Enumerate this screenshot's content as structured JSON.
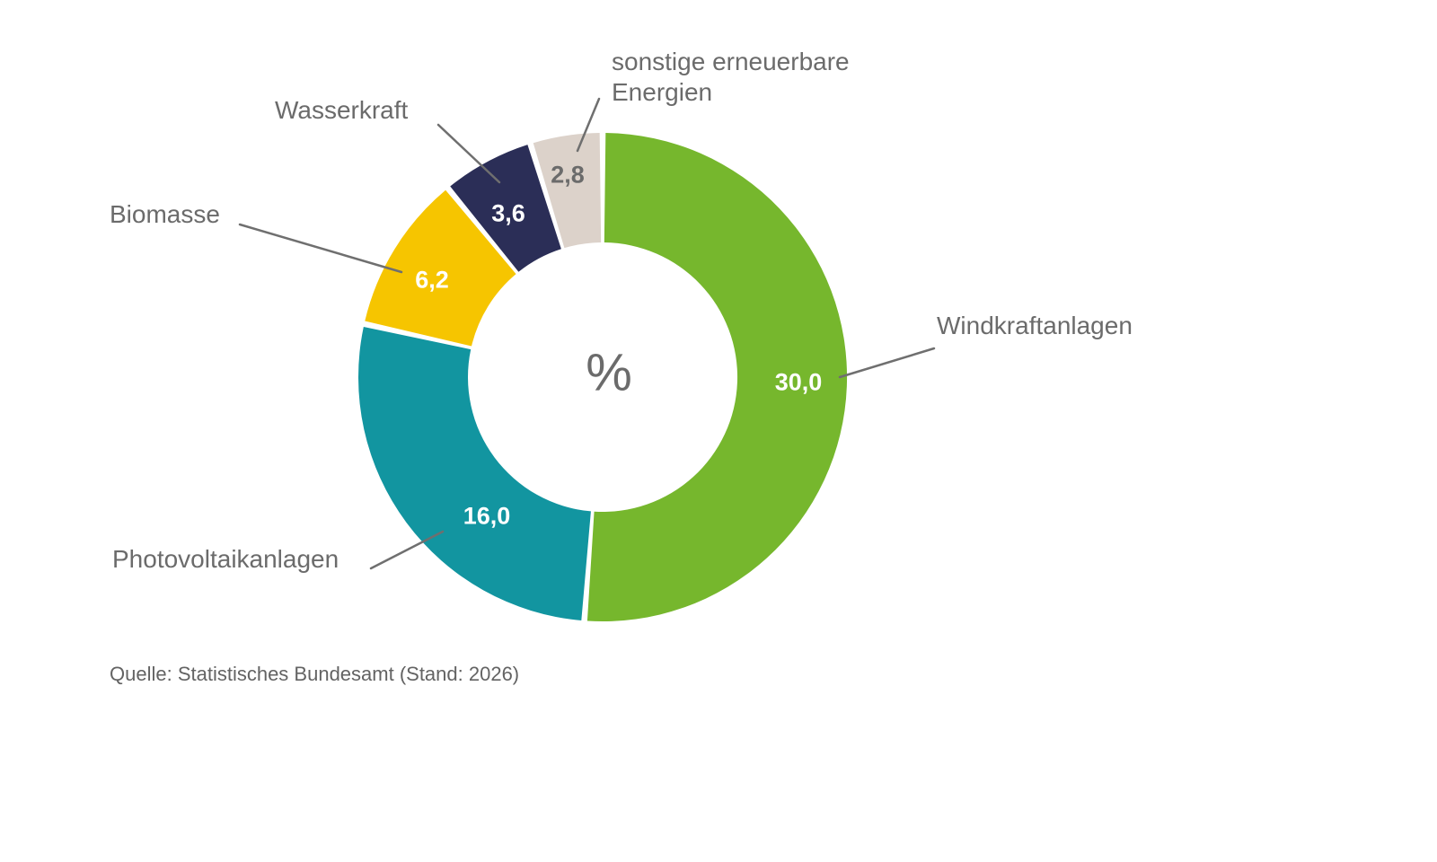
{
  "chart_data": {
    "type": "pie",
    "subtype": "donut",
    "center_label": "%",
    "segments": [
      {
        "label": "Windkraftanlagen",
        "value": 30.0,
        "value_label": "30,0",
        "color": "#76b72d",
        "value_label_color": "#ffffff"
      },
      {
        "label": "Photovoltaikanlagen",
        "value": 16.0,
        "value_label": "16,0",
        "color": "#1295a0",
        "value_label_color": "#ffffff"
      },
      {
        "label": "Biomasse",
        "value": 6.2,
        "value_label": "6,2",
        "color": "#f6c500",
        "value_label_color": "#ffffff"
      },
      {
        "label": "Wasserkraft",
        "value": 3.6,
        "value_label": "3,6",
        "color": "#2b2e57",
        "value_label_color": "#ffffff"
      },
      {
        "label": "sonstige erneuerbare Energien",
        "value": 2.8,
        "value_label": "2,8",
        "color": "#dcd2ca",
        "value_label_color": "#6b6b6b"
      }
    ],
    "start_position": "top",
    "direction": "clockwise",
    "legend_position": "outside-callouts",
    "text_color": "#6b6b6b",
    "leader_line_color": "#6f6f6f",
    "source": "Quelle: Statistisches Bundesamt (Stand: 2026)"
  }
}
